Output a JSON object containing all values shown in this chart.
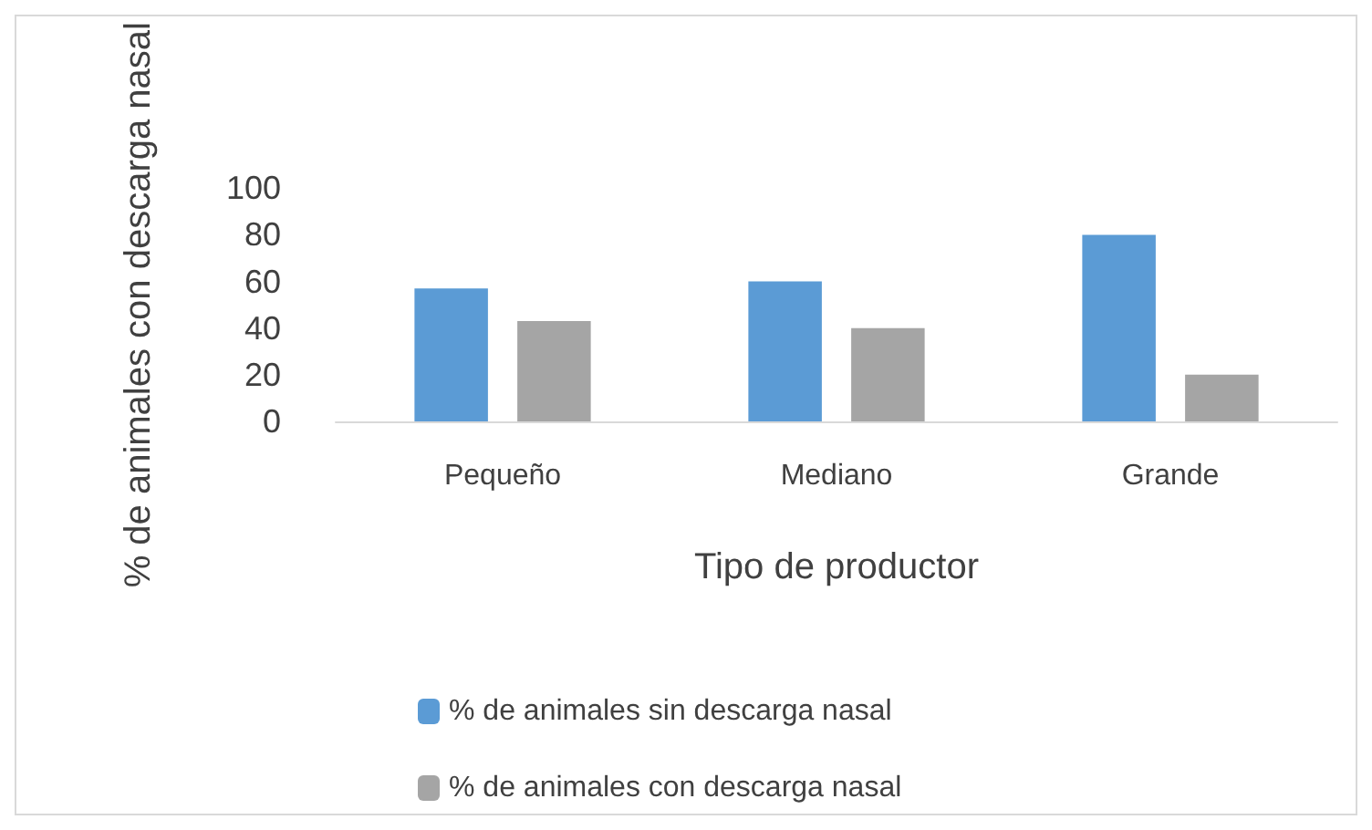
{
  "chart_data": {
    "type": "bar",
    "xlabel": "Tipo de productor",
    "ylabel": "% de animales con descarga nasal",
    "categories": [
      "Pequeño",
      "Mediano",
      "Grande"
    ],
    "series": [
      {
        "name": "% de animales sin descarga nasal",
        "color": "#5b9bd5",
        "values": [
          57,
          60,
          80
        ]
      },
      {
        "name": "% de animales con descarga nasal",
        "color": "#a5a5a5",
        "values": [
          43,
          40,
          20
        ]
      }
    ],
    "ylim": [
      0,
      100
    ],
    "yticks": [
      0,
      20,
      40,
      60,
      80,
      100
    ],
    "grid": false,
    "legend": "bottom"
  }
}
